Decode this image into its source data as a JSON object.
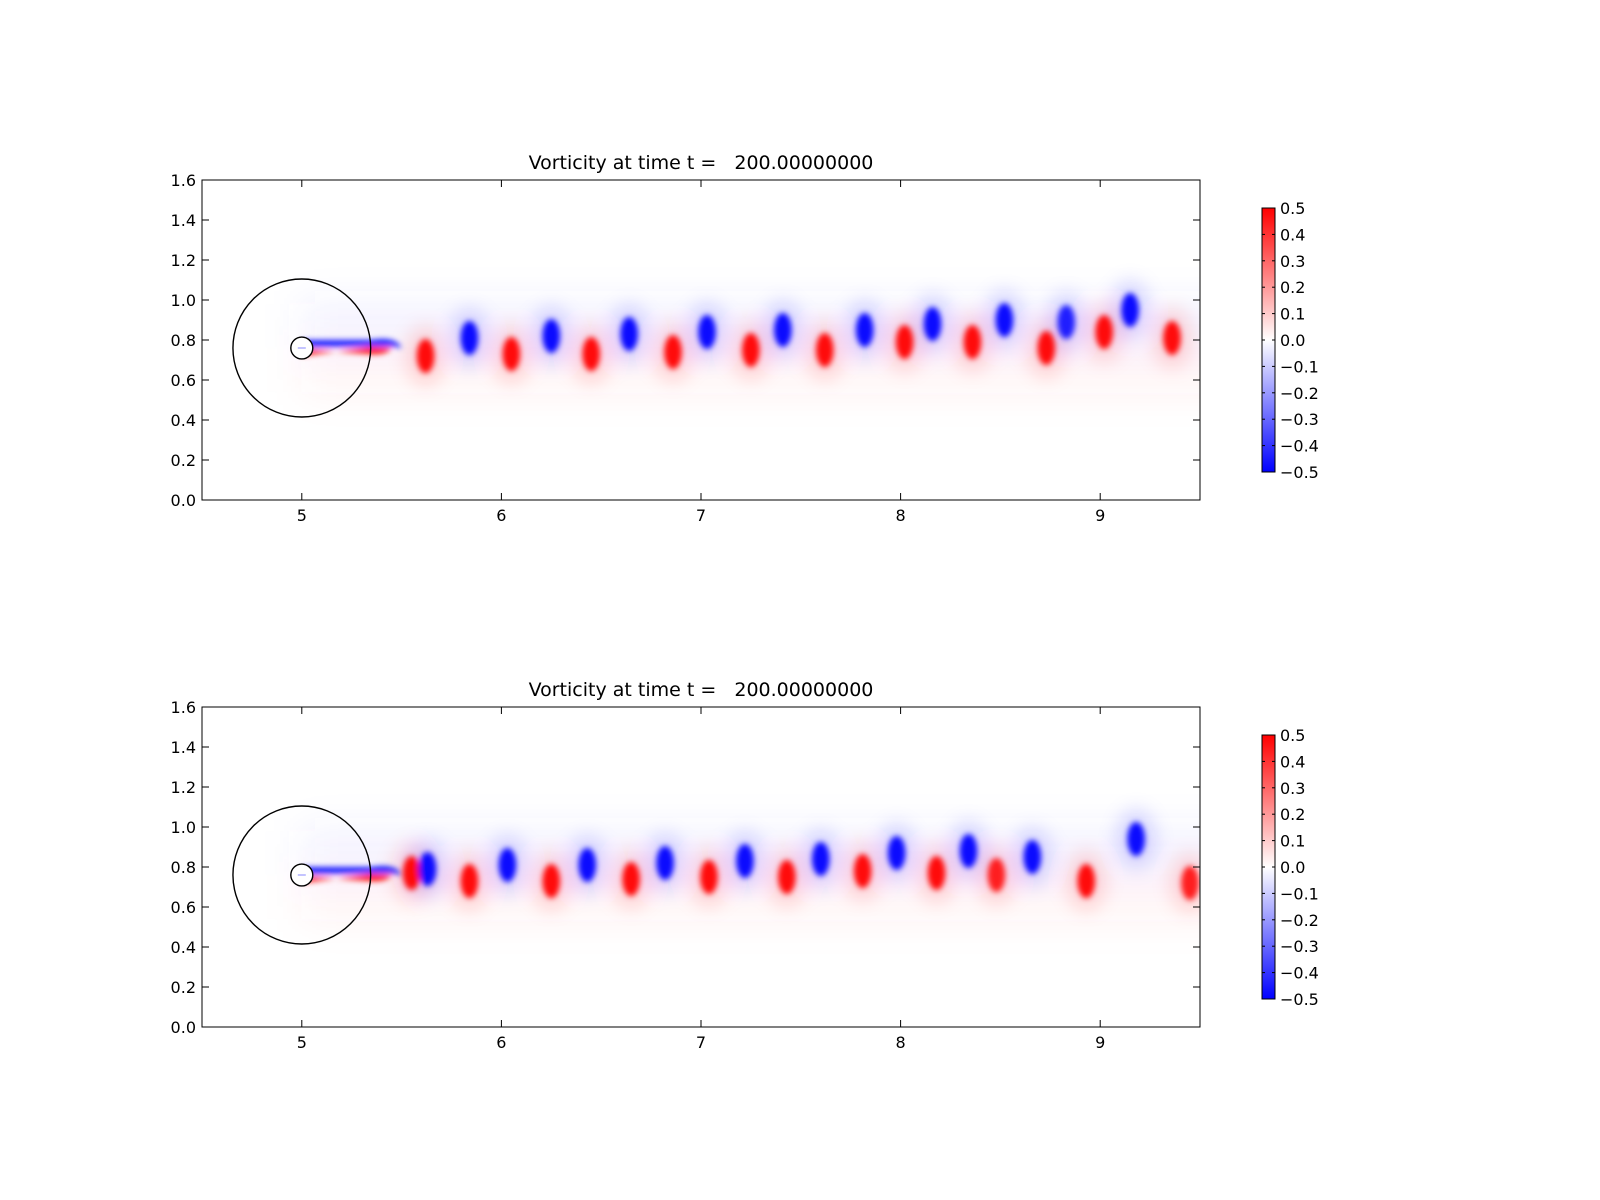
{
  "chart_data": [
    {
      "type": "heatmap",
      "title": "Vorticity at time t =   200.00000000",
      "xlabel": "",
      "ylabel": "",
      "xlim": [
        4.5,
        9.5
      ],
      "ylim": [
        0.0,
        1.6
      ],
      "x_ticks": [
        "5",
        "6",
        "7",
        "8",
        "9"
      ],
      "y_ticks": [
        "0.0",
        "0.2",
        "0.4",
        "0.6",
        "0.8",
        "1.0",
        "1.2",
        "1.4",
        "1.6"
      ],
      "colorbar": {
        "min": -0.5,
        "max": 0.5,
        "colors": [
          "#0000ff",
          "#ffffff",
          "#ff0000"
        ],
        "ticks": [
          "0.5",
          "0.4",
          "0.3",
          "0.2",
          "0.1",
          "0.0",
          "−0.1",
          "−0.2",
          "−0.3",
          "−0.4",
          "−0.5"
        ]
      },
      "body": {
        "center": [
          5.0,
          0.76
        ],
        "radius": 0.055
      },
      "boundary_circle": {
        "center": [
          5.0,
          0.76
        ],
        "radius": 0.345
      },
      "vortices": [
        {
          "x": 5.62,
          "y": 0.72,
          "w": 0.5
        },
        {
          "x": 5.84,
          "y": 0.81,
          "w": -0.5
        },
        {
          "x": 6.05,
          "y": 0.73,
          "w": 0.5
        },
        {
          "x": 6.25,
          "y": 0.82,
          "w": -0.5
        },
        {
          "x": 6.45,
          "y": 0.73,
          "w": 0.5
        },
        {
          "x": 6.64,
          "y": 0.83,
          "w": -0.5
        },
        {
          "x": 6.86,
          "y": 0.74,
          "w": 0.5
        },
        {
          "x": 7.03,
          "y": 0.84,
          "w": -0.5
        },
        {
          "x": 7.25,
          "y": 0.75,
          "w": 0.5
        },
        {
          "x": 7.41,
          "y": 0.85,
          "w": -0.5
        },
        {
          "x": 7.62,
          "y": 0.75,
          "w": 0.5
        },
        {
          "x": 7.82,
          "y": 0.85,
          "w": -0.5
        },
        {
          "x": 8.02,
          "y": 0.79,
          "w": 0.5
        },
        {
          "x": 8.16,
          "y": 0.88,
          "w": -0.5
        },
        {
          "x": 8.36,
          "y": 0.79,
          "w": 0.5
        },
        {
          "x": 8.52,
          "y": 0.9,
          "w": -0.5
        },
        {
          "x": 8.73,
          "y": 0.76,
          "w": 0.5
        },
        {
          "x": 8.83,
          "y": 0.89,
          "w": -0.45
        },
        {
          "x": 9.02,
          "y": 0.84,
          "w": 0.5
        },
        {
          "x": 9.15,
          "y": 0.95,
          "w": -0.5
        },
        {
          "x": 9.36,
          "y": 0.81,
          "w": 0.5
        }
      ]
    },
    {
      "type": "heatmap",
      "title": "Vorticity at time t =   200.00000000",
      "xlabel": "",
      "ylabel": "",
      "xlim": [
        4.5,
        9.5
      ],
      "ylim": [
        0.0,
        1.6
      ],
      "x_ticks": [
        "5",
        "6",
        "7",
        "8",
        "9"
      ],
      "y_ticks": [
        "0.0",
        "0.2",
        "0.4",
        "0.6",
        "0.8",
        "1.0",
        "1.2",
        "1.4",
        "1.6"
      ],
      "colorbar": {
        "min": -0.5,
        "max": 0.5,
        "colors": [
          "#0000ff",
          "#ffffff",
          "#ff0000"
        ],
        "ticks": [
          "0.5",
          "0.4",
          "0.3",
          "0.2",
          "0.1",
          "0.0",
          "−0.1",
          "−0.2",
          "−0.3",
          "−0.4",
          "−0.5"
        ]
      },
      "body": {
        "center": [
          5.0,
          0.76
        ],
        "radius": 0.055
      },
      "boundary_circle": {
        "center": [
          5.0,
          0.76
        ],
        "radius": 0.345
      },
      "vortices": [
        {
          "x": 5.55,
          "y": 0.77,
          "w": 0.5
        },
        {
          "x": 5.63,
          "y": 0.79,
          "w": -0.5
        },
        {
          "x": 5.84,
          "y": 0.73,
          "w": 0.5
        },
        {
          "x": 6.03,
          "y": 0.81,
          "w": -0.5
        },
        {
          "x": 6.25,
          "y": 0.73,
          "w": 0.5
        },
        {
          "x": 6.43,
          "y": 0.81,
          "w": -0.5
        },
        {
          "x": 6.65,
          "y": 0.74,
          "w": 0.5
        },
        {
          "x": 6.82,
          "y": 0.82,
          "w": -0.5
        },
        {
          "x": 7.04,
          "y": 0.75,
          "w": 0.5
        },
        {
          "x": 7.22,
          "y": 0.83,
          "w": -0.5
        },
        {
          "x": 7.43,
          "y": 0.75,
          "w": 0.5
        },
        {
          "x": 7.6,
          "y": 0.84,
          "w": -0.5
        },
        {
          "x": 7.81,
          "y": 0.78,
          "w": 0.5
        },
        {
          "x": 7.98,
          "y": 0.87,
          "w": -0.5
        },
        {
          "x": 8.18,
          "y": 0.77,
          "w": 0.5
        },
        {
          "x": 8.34,
          "y": 0.88,
          "w": -0.5
        },
        {
          "x": 8.48,
          "y": 0.76,
          "w": 0.45
        },
        {
          "x": 8.66,
          "y": 0.85,
          "w": -0.5
        },
        {
          "x": 8.93,
          "y": 0.73,
          "w": 0.5
        },
        {
          "x": 9.18,
          "y": 0.94,
          "w": -0.5
        },
        {
          "x": 9.45,
          "y": 0.72,
          "w": 0.45
        }
      ]
    }
  ]
}
